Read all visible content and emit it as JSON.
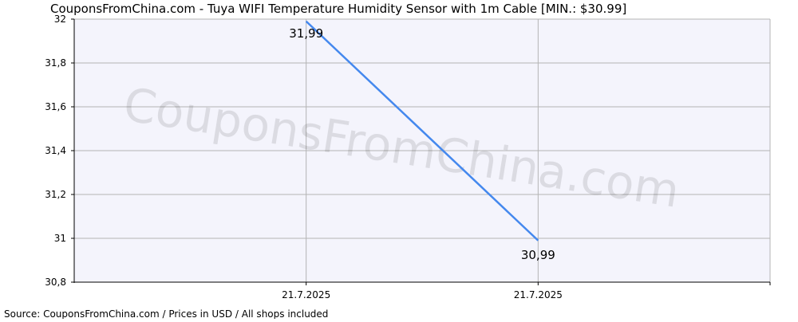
{
  "chart_data": {
    "type": "line",
    "title": "CouponsFromChina.com - Tuya WIFI Temperature Humidity Sensor with 1m Cable [MIN.: $30.99]",
    "categories": [
      "21.7.2025",
      "21.7.2025"
    ],
    "series": [
      {
        "values": [
          31.99,
          30.99
        ],
        "data_labels": [
          "31,99",
          "30,99"
        ]
      }
    ],
    "ylim": [
      30.8,
      32
    ],
    "y_ticks": [
      30.8,
      31,
      31.2,
      31.4,
      31.6,
      31.8,
      32
    ],
    "y_tick_labels": [
      "30,8",
      "31",
      "31,2",
      "31,4",
      "31,6",
      "31,8",
      "32"
    ],
    "grid": true,
    "legend": "none",
    "line_color": "#4488ee",
    "plot_background": "#f4f4fc",
    "grid_color": "#b4b4b4",
    "watermark": "CouponsFromChina.com",
    "source": "Source: CouponsFromChina.com / Prices in USD / All shops included"
  }
}
